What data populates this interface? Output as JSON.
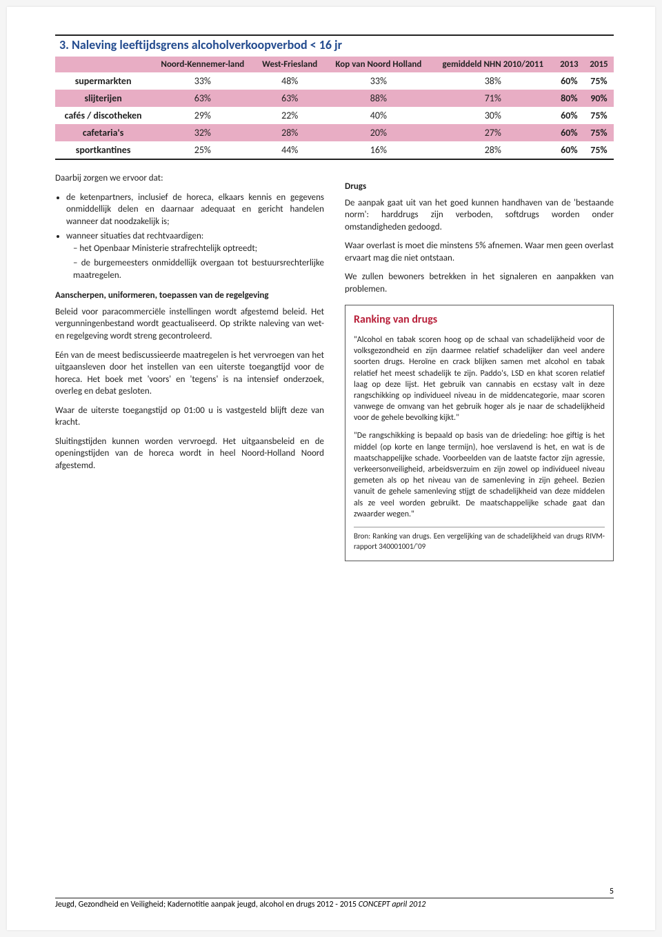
{
  "section_title": "3. Naleving leeftijdsgrens alcoholverkoopverbod < 16 jr",
  "table": {
    "header_bg": "#e8adc4",
    "pink_text": "#8b1a3a",
    "columns": [
      "",
      "Noord-Kennemer-land",
      "West-Friesland",
      "Kop van Noord Holland",
      "gemiddeld NHN 2010/2011",
      "2013",
      "2015"
    ],
    "rows": [
      {
        "label": "supermarkten",
        "cells": [
          "33%",
          "48%",
          "33%",
          "38%",
          "60%",
          "75%"
        ],
        "shaded": false
      },
      {
        "label": "slijterijen",
        "cells": [
          "63%",
          "63%",
          "88%",
          "71%",
          "80%",
          "90%"
        ],
        "shaded": true
      },
      {
        "label": "cafés / discotheken",
        "cells": [
          "29%",
          "22%",
          "40%",
          "30%",
          "60%",
          "75%"
        ],
        "shaded": false
      },
      {
        "label": "cafetaria's",
        "cells": [
          "32%",
          "28%",
          "20%",
          "27%",
          "60%",
          "75%"
        ],
        "shaded": true
      },
      {
        "label": "sportkantines",
        "cells": [
          "25%",
          "44%",
          "16%",
          "28%",
          "60%",
          "75%"
        ],
        "shaded": false
      }
    ]
  },
  "left_col": {
    "intro": "Daarbij zorgen we ervoor dat:",
    "bullet1": "de ketenpartners, inclusief de horeca, elkaars kennis en gegevens onmiddellijk delen en daarnaar adequaat en gericht handelen wanneer dat noodzakelijk is;",
    "bullet2": "wanneer situaties dat rechtvaardigen:",
    "sub1": "het Openbaar Ministerie strafrechtelijk optreedt;",
    "sub2": "de burgemeesters onmiddellijk overgaan tot bestuursrechterlijke maatregelen.",
    "subhead1": "Aanscherpen, uniformeren, toepassen van de regelgeving",
    "p1": "Beleid voor paracommerciële instellingen wordt afgestemd beleid. Het vergunningenbestand wordt geactualiseerd. Op strikte naleving van wet- en regelgeving wordt streng gecontroleerd.",
    "p2": "Eén van de meest bediscussieerde maatregelen is het vervroegen van het uitgaansleven door het instellen van een uiterste toegangtijd voor de horeca. Het boek met 'voors' en 'tegens' is na intensief onderzoek, overleg en debat gesloten.",
    "p3": "Waar de uiterste toegangstijd op 01:00 u is vastgesteld blijft deze van kracht.",
    "p4": "Sluitingstijden kunnen worden vervroegd. Het uitgaansbeleid en de openingstijden van de horeca wordt in heel Noord-Holland Noord afgestemd."
  },
  "right_col": {
    "subhead": "Drugs",
    "p1": "De aanpak gaat uit van het goed kunnen handhaven van de 'bestaande norm': harddrugs zijn verboden, softdrugs worden onder omstandigheden gedoogd.",
    "p2": "Waar overlast is moet die minstens 5% afnemen. Waar men geen overlast ervaart mag die niet ontstaan.",
    "p3": "We zullen bewoners betrekken in het signaleren en aanpakken van problemen."
  },
  "rankbox": {
    "title": "Ranking van drugs",
    "p1": "\"Alcohol en tabak scoren hoog op de schaal van schadelijkheid voor de volksgezondheid en zijn daarmee relatief schadelijker dan veel andere soorten drugs. Heroïne en crack blijken samen met alcohol en tabak relatief het meest schadelijk te zijn. Paddo's, LSD en khat scoren relatief laag op deze lijst. Het gebruik van cannabis en ecstasy valt in deze rangschikking op individueel niveau in de middencategorie, maar scoren vanwege de omvang van het gebruik hoger als je naar de schadelijkheid voor de gehele bevolking kijkt.\"",
    "p2": "\"De rangschikking is bepaald op basis van de driedeling: hoe giftig is het middel (op korte en lange termijn), hoe verslavend is het, en wat is de maatschappelijke schade. Voorbeelden van de laatste factor zijn agressie, verkeersonveiligheid, arbeidsverzuim en zijn zowel op individueel niveau gemeten als op het niveau van de samenleving in zijn geheel. Bezien vanuit de gehele samenleving stijgt de schadelijkheid van deze middelen als ze veel worden gebruikt. De maatschappelijke schade gaat dan zwaarder wegen.\"",
    "source": "Bron: Ranking van drugs. Een vergelijking van de schadelijkheid van drugs RIVM-rapport 340001001/'09"
  },
  "footer": {
    "page_number": "5",
    "text_plain": "Jeugd, Gezondheid en Veiligheid; Kadernotitie aanpak jeugd, alcohol en drugs 2012 - 2015 ",
    "text_italic": "CONCEPT april 2012"
  }
}
